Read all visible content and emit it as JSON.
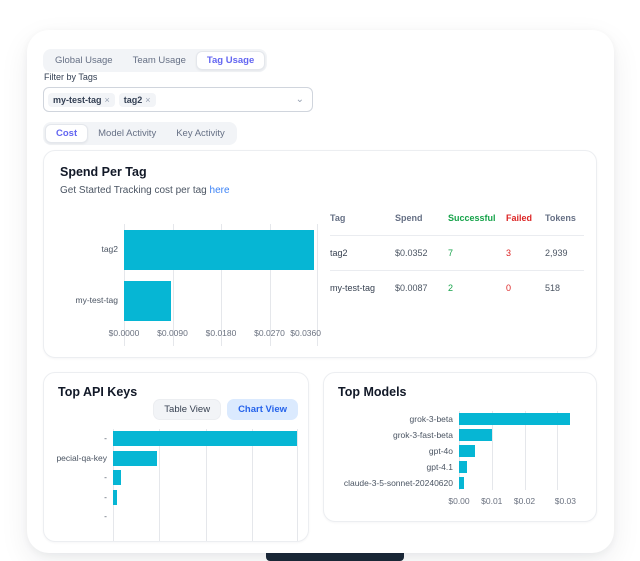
{
  "colors": {
    "bar_cyan": "#06b6d4",
    "accent_indigo": "#6366f1",
    "link_blue": "#3b82f6",
    "button_blue_bg": "#dbeafe",
    "button_blue_text": "#2563eb",
    "success_green": "#16a34a",
    "failed_red": "#dc2626",
    "dock_navy": "#1d2939"
  },
  "nav": {
    "tabs": [
      "Global Usage",
      "Team Usage",
      "Tag Usage"
    ],
    "active": "Tag Usage"
  },
  "filter": {
    "label": "Filter by Tags",
    "chips": [
      {
        "label": "my-test-tag",
        "remove": "×"
      },
      {
        "label": "tag2",
        "remove": "×"
      }
    ],
    "chevron": "⌄"
  },
  "subnav": {
    "tabs": [
      "Cost",
      "Model Activity",
      "Key Activity"
    ],
    "active": "Cost"
  },
  "spend_card": {
    "title": "Spend Per Tag",
    "subtitle_prefix": "Get Started Tracking cost per tag ",
    "subtitle_link": "here",
    "chart_data": {
      "type": "bar",
      "orientation": "horizontal",
      "categories": [
        "tag2",
        "my-test-tag"
      ],
      "values": [
        0.0352,
        0.0087
      ],
      "width_pct": [
        97.8,
        24.2
      ],
      "x_ticks": [
        "$0.0000",
        "$0.0090",
        "$0.0180",
        "$0.0270",
        "$0.0360"
      ],
      "xlim": [
        0,
        0.036
      ],
      "grid": true,
      "bar_color": "#06b6d4"
    },
    "table": {
      "headers": [
        "Tag",
        "Spend",
        "Successful",
        "Failed",
        "Tokens"
      ],
      "rows": [
        {
          "tag": "tag2",
          "spend": "$0.0352",
          "successful": "7",
          "failed": "3",
          "tokens": "2,939"
        },
        {
          "tag": "my-test-tag",
          "spend": "$0.0087",
          "successful": "2",
          "failed": "0",
          "tokens": "518"
        }
      ]
    }
  },
  "top_api_keys": {
    "title": "Top API Keys",
    "buttons": {
      "table_view": "Table View",
      "chart_view": "Chart View",
      "active": "Chart View"
    },
    "chart_data": {
      "type": "bar",
      "orientation": "horizontal",
      "categories": [
        "-",
        "pecial-qa-key",
        "-",
        "-",
        "-"
      ],
      "values_pct_of_max": [
        100,
        24,
        4.5,
        2,
        0
      ],
      "width_pct": [
        99.5,
        24,
        4.5,
        2,
        0
      ],
      "grid": true,
      "x_axis_clipped": true,
      "bar_color": "#06b6d4"
    }
  },
  "top_models": {
    "title": "Top Models",
    "chart_data": {
      "type": "bar",
      "orientation": "horizontal",
      "categories": [
        "grok-3-beta",
        "grok-3-fast-beta",
        "gpt-4o",
        "gpt-4.1",
        "claude-3-5-sonnet-20240620"
      ],
      "values": [
        0.034,
        0.01,
        0.005,
        0.0026,
        0.0016
      ],
      "width_pct": [
        98.5,
        29,
        14.5,
        7.5,
        4.6
      ],
      "x_ticks": [
        "$0.00",
        "$0.01",
        "$0.02",
        "$0.03"
      ],
      "xlim": [
        0,
        0.0345
      ],
      "grid": true,
      "bar_color": "#06b6d4"
    }
  }
}
